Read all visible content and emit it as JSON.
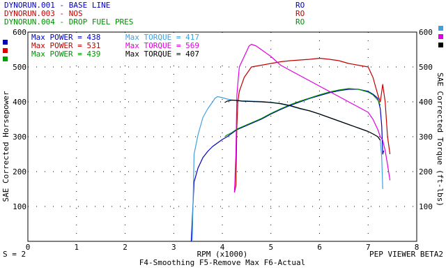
{
  "runs": [
    {
      "name": "DYNORUN.001 - BASE LINE",
      "tag": "RO",
      "color": "#0000c0"
    },
    {
      "name": "DYNORUN.003 - NOS",
      "tag": "RO",
      "color": "#c00000"
    },
    {
      "name": "DYNORUN.004 - DROP FUEL PRES",
      "tag": "RO",
      "color": "#009000"
    }
  ],
  "legend": {
    "rows": [
      {
        "power_label": "Max POWER = 438",
        "power_color": "#0000c0",
        "torque_label": "Max TORQUE = 417",
        "torque_color": "#40a0e0"
      },
      {
        "power_label": "Max POWER = 531",
        "power_color": "#c00000",
        "torque_label": "Max TORQUE = 569",
        "torque_color": "#e000e0"
      },
      {
        "power_label": "Max POWER = 439",
        "power_color": "#009000",
        "torque_label": "Max TORQUE = 407",
        "torque_color": "#000000"
      }
    ]
  },
  "footer": {
    "smoothing": "S = 2",
    "viewer": "PEP VIEWER BETA2",
    "functions": "F4-Smoothing  F5-Remove Max  F6-Actual"
  },
  "chart_data": {
    "type": "line",
    "xlabel": "RPM (x1000)",
    "ylabel_left": "SAE Corrected Horsepower",
    "ylabel_right": "SAE Corrected Torque (ft-lbs)",
    "xlim": [
      0,
      8
    ],
    "ylim": [
      0,
      600
    ],
    "x_ticks": [
      0,
      1,
      2,
      3,
      4,
      5,
      6,
      7,
      8
    ],
    "y_ticks": [
      100,
      200,
      300,
      400,
      500,
      600
    ],
    "series": [
      {
        "name": "DYNORUN.001 Power",
        "color": "#0000c0",
        "x": [
          3.36,
          3.42,
          3.5,
          3.6,
          3.7,
          3.8,
          3.9,
          4.0,
          4.1,
          4.2,
          4.3,
          4.4,
          4.6,
          4.8,
          5.0,
          5.2,
          5.4,
          5.6,
          5.8,
          6.0,
          6.2,
          6.4,
          6.6,
          6.8,
          7.0,
          7.1,
          7.2,
          7.25,
          7.28,
          7.3,
          7.32
        ],
        "y": [
          0,
          170,
          210,
          240,
          258,
          272,
          282,
          292,
          300,
          310,
          320,
          326,
          338,
          350,
          365,
          378,
          390,
          400,
          410,
          418,
          426,
          432,
          436,
          436,
          430,
          422,
          410,
          380,
          330,
          250,
          260
        ]
      },
      {
        "name": "DYNORUN.001 Torque",
        "color": "#40a0e0",
        "x": [
          3.38,
          3.42,
          3.5,
          3.6,
          3.7,
          3.75,
          3.8,
          3.85,
          3.9,
          4.0,
          4.1,
          4.2,
          4.4,
          4.6,
          4.8,
          5.0,
          5.2,
          5.4,
          5.6,
          5.8,
          6.0,
          6.2,
          6.4,
          6.6,
          6.8,
          7.0,
          7.1,
          7.2,
          7.25,
          7.28,
          7.3
        ],
        "y": [
          0,
          250,
          305,
          355,
          380,
          390,
          400,
          410,
          415,
          412,
          408,
          405,
          403,
          402,
          401,
          399,
          394,
          388,
          380,
          374,
          365,
          355,
          345,
          335,
          325,
          315,
          308,
          300,
          290,
          240,
          150
        ]
      },
      {
        "name": "DYNORUN.003 Power",
        "color": "#c00000",
        "x": [
          4.25,
          4.28,
          4.3,
          4.32,
          4.35,
          4.45,
          4.6,
          4.8,
          5.0,
          5.2,
          5.4,
          5.6,
          5.8,
          6.0,
          6.2,
          6.4,
          6.6,
          6.8,
          7.0,
          7.1,
          7.2,
          7.25,
          7.3,
          7.35,
          7.4,
          7.45
        ],
        "y": [
          140,
          160,
          330,
          400,
          430,
          470,
          500,
          505,
          510,
          515,
          518,
          520,
          522,
          525,
          522,
          518,
          510,
          505,
          500,
          470,
          420,
          400,
          450,
          400,
          300,
          250
        ]
      },
      {
        "name": "DYNORUN.003 Torque",
        "color": "#e000e0",
        "x": [
          4.25,
          4.28,
          4.3,
          4.35,
          4.45,
          4.55,
          4.6,
          4.7,
          4.8,
          5.0,
          5.2,
          5.4,
          5.6,
          5.8,
          6.0,
          6.2,
          6.4,
          6.6,
          6.8,
          7.0,
          7.1,
          7.2,
          7.25,
          7.3,
          7.35,
          7.4,
          7.45
        ],
        "y": [
          140,
          250,
          420,
          500,
          530,
          560,
          565,
          560,
          550,
          530,
          505,
          490,
          475,
          460,
          445,
          430,
          415,
          400,
          385,
          370,
          350,
          320,
          300,
          290,
          260,
          220,
          175
        ]
      },
      {
        "name": "DYNORUN.004 Power",
        "color": "#009000",
        "x": [
          4.05,
          4.1,
          4.2,
          4.3,
          4.4,
          4.6,
          4.8,
          5.0,
          5.2,
          5.4,
          5.6,
          5.8,
          6.0,
          6.2,
          6.4,
          6.6,
          6.8,
          7.0,
          7.1,
          7.2,
          7.25
        ],
        "y": [
          300,
          305,
          312,
          322,
          328,
          340,
          352,
          367,
          380,
          392,
          402,
          411,
          420,
          428,
          434,
          438,
          436,
          428,
          420,
          405,
          390
        ]
      },
      {
        "name": "DYNORUN.004 Torque",
        "color": "#000000",
        "x": [
          4.05,
          4.1,
          4.2,
          4.3,
          4.4,
          4.6,
          4.8,
          5.0,
          5.2,
          5.4,
          5.6,
          5.8,
          6.0,
          6.2,
          6.4,
          6.6,
          6.8,
          7.0,
          7.1,
          7.2,
          7.25
        ],
        "y": [
          398,
          402,
          405,
          404,
          402,
          401,
          400,
          398,
          395,
          389,
          381,
          374,
          365,
          355,
          345,
          335,
          325,
          315,
          308,
          300,
          290
        ]
      }
    ]
  }
}
